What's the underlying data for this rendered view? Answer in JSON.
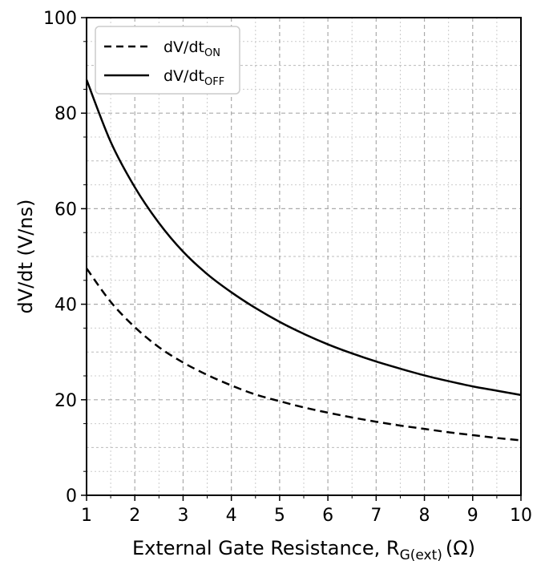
{
  "chart_data": {
    "type": "line",
    "xlabel": "External Gate Resistance, R",
    "xlabel_sub": "G(ext)",
    "xlabel_unit": "(Ω)",
    "ylabel": "dV/dt (V/ns)",
    "xlim": [
      1,
      10
    ],
    "ylim": [
      0,
      100
    ],
    "x_ticks": [
      1,
      2,
      3,
      4,
      5,
      6,
      7,
      8,
      9,
      10
    ],
    "y_ticks": [
      0,
      20,
      40,
      60,
      80,
      100
    ],
    "x_tick_labels": [
      "1",
      "2",
      "3",
      "4",
      "5",
      "6",
      "7",
      "8",
      "9",
      "10"
    ],
    "y_tick_labels": [
      "0",
      "20",
      "40",
      "60",
      "80",
      "100"
    ],
    "grid": true,
    "legend_position": "top-left",
    "series": [
      {
        "name": "dV/dt",
        "name_sub": "ON",
        "style": "dashed",
        "color": "#000000",
        "x": [
          1,
          1.5,
          2,
          2.5,
          3,
          3.5,
          4,
          4.5,
          5,
          5.5,
          6,
          6.5,
          7,
          7.5,
          8,
          8.5,
          9,
          9.5,
          10
        ],
        "y": [
          47.5,
          40.5,
          35.2,
          31.0,
          27.8,
          25.2,
          23.0,
          21.1,
          19.7,
          18.4,
          17.3,
          16.3,
          15.4,
          14.6,
          13.9,
          13.2,
          12.6,
          12.0,
          11.5
        ]
      },
      {
        "name": "dV/dt",
        "name_sub": "OFF",
        "style": "solid",
        "color": "#000000",
        "x": [
          1,
          1.5,
          2,
          2.5,
          3,
          3.5,
          4,
          4.5,
          5,
          5.5,
          6,
          6.5,
          7,
          7.5,
          8,
          8.5,
          9,
          9.5,
          10
        ],
        "y": [
          87.0,
          74.0,
          64.5,
          57.0,
          51.0,
          46.3,
          42.5,
          39.2,
          36.3,
          33.8,
          31.6,
          29.7,
          28.0,
          26.5,
          25.1,
          23.9,
          22.8,
          21.9,
          21.0
        ]
      }
    ]
  }
}
